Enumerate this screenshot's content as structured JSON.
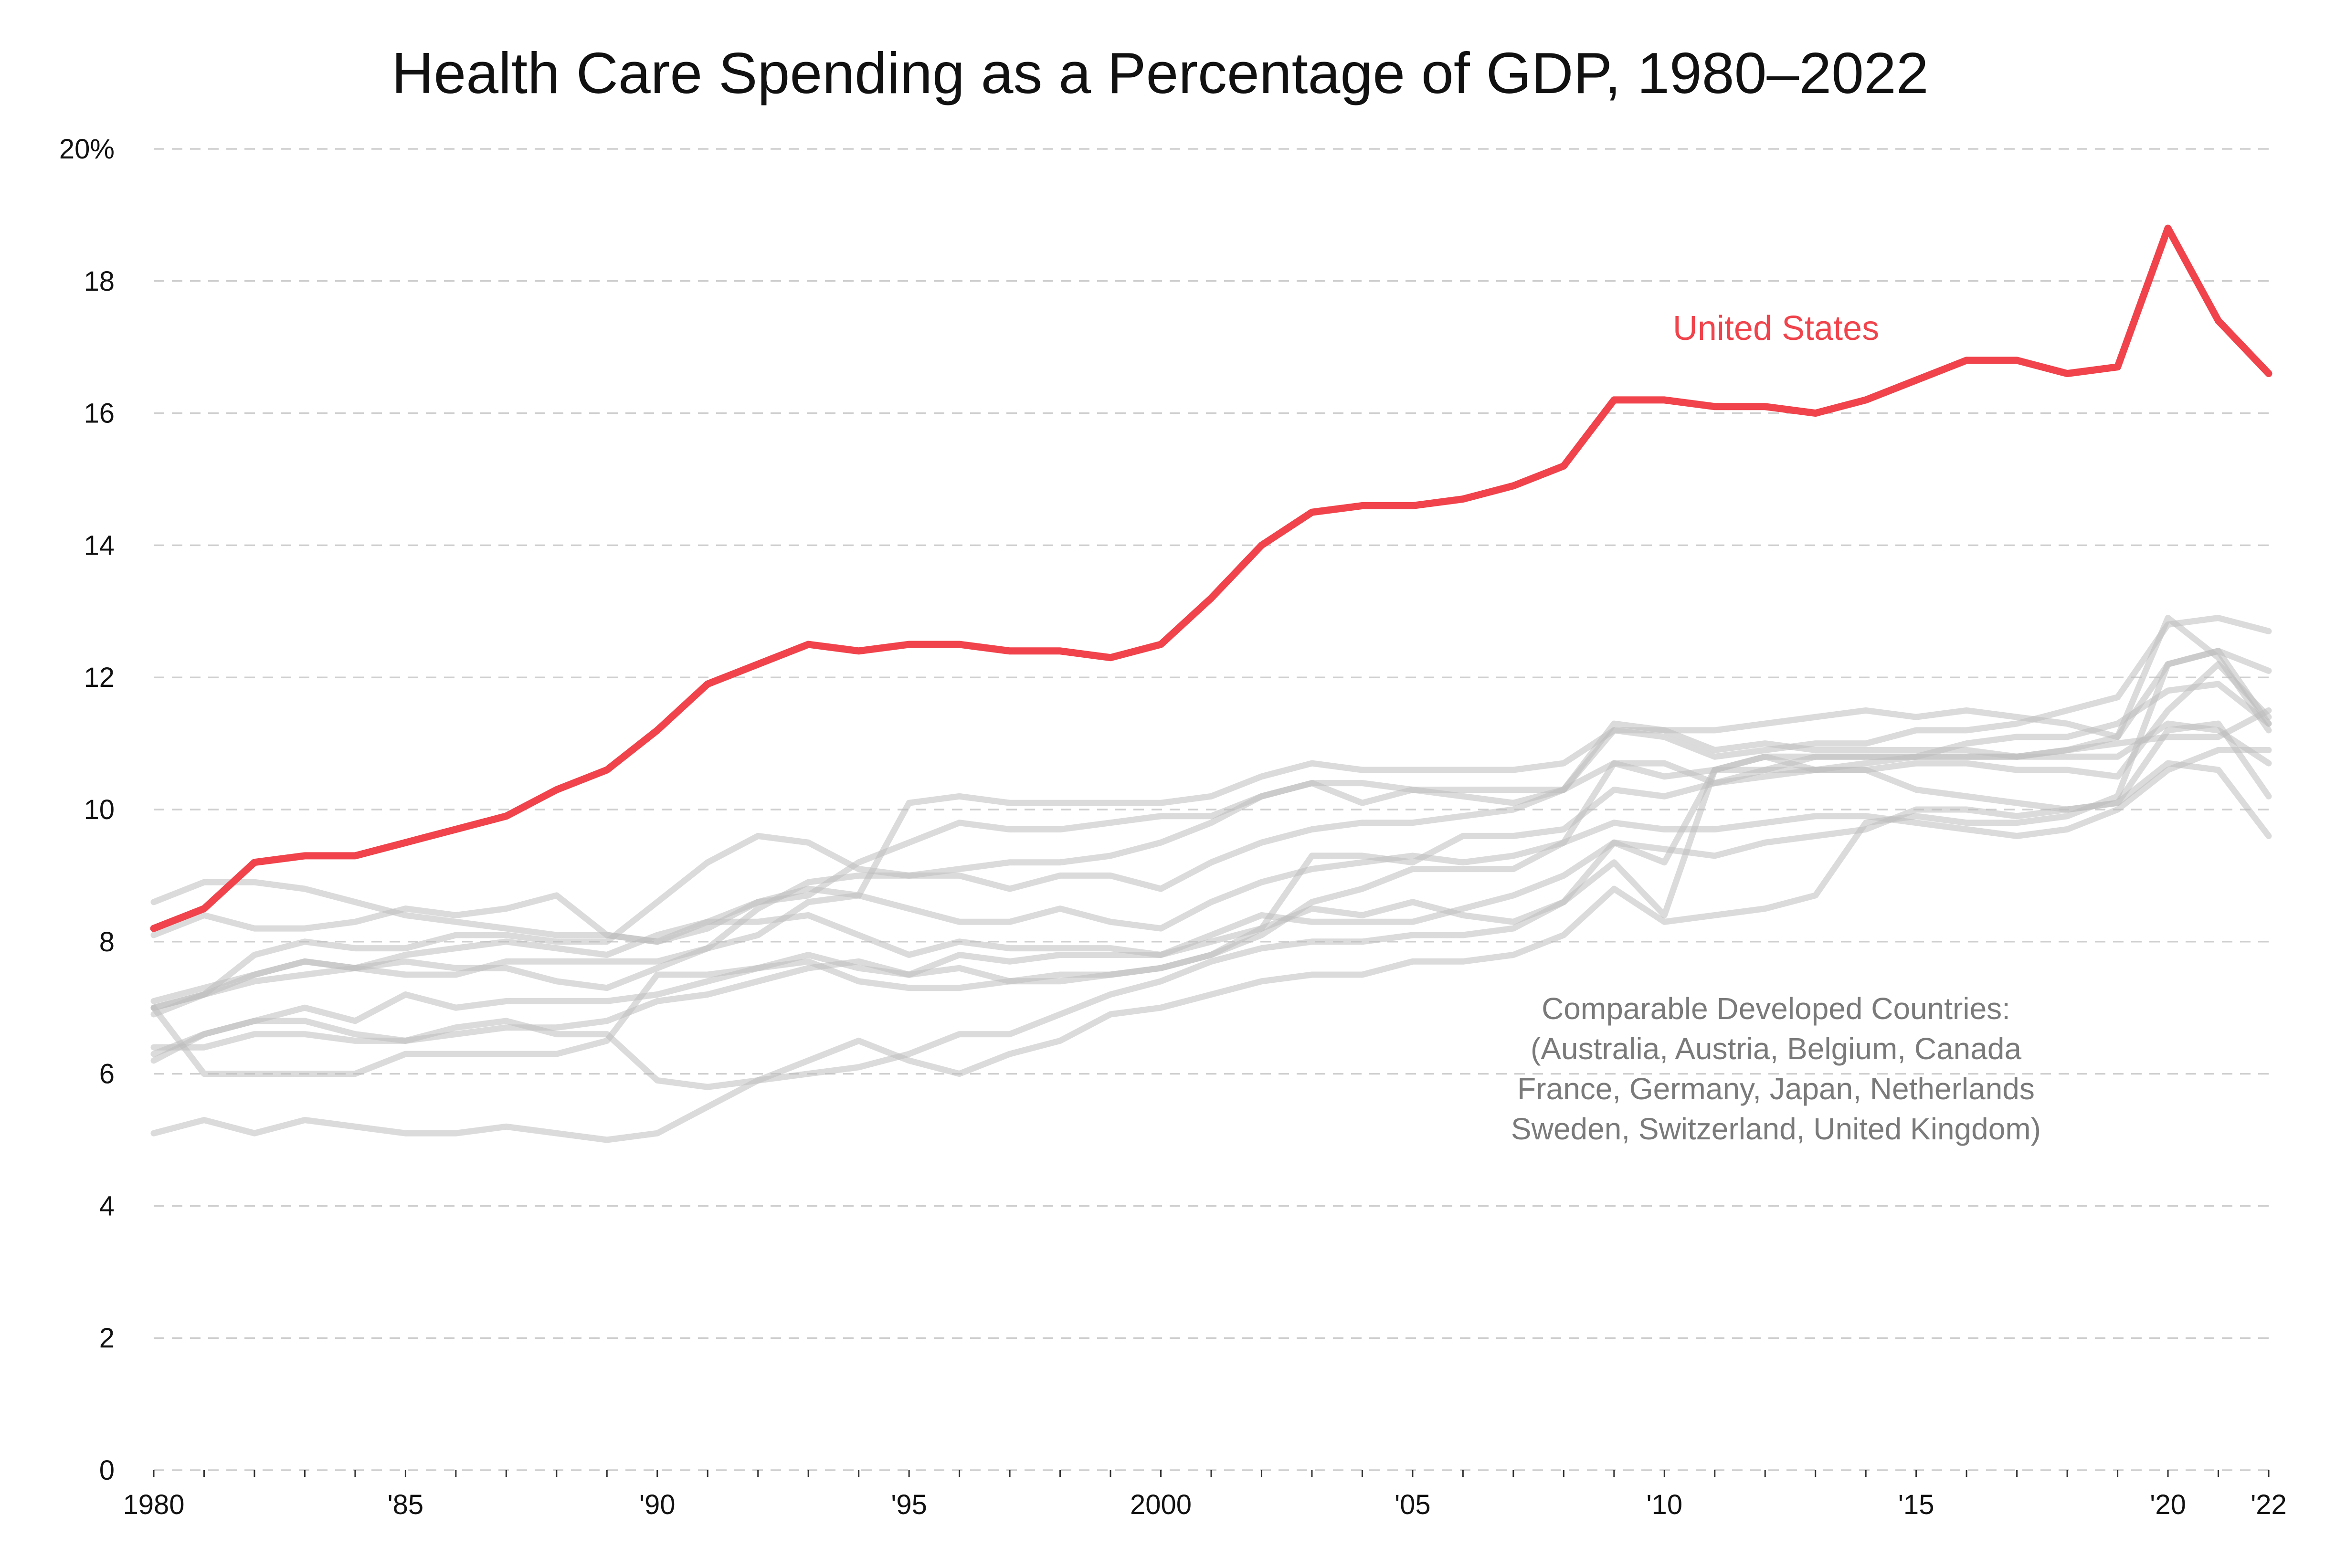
{
  "chart_data": {
    "type": "line",
    "title": "Health Care Spending as a Percentage of GDP, 1980–2022",
    "xlabel": "",
    "ylabel": "",
    "x": [
      1980,
      1981,
      1982,
      1983,
      1984,
      1985,
      1986,
      1987,
      1988,
      1989,
      1990,
      1991,
      1992,
      1993,
      1994,
      1995,
      1996,
      1997,
      1998,
      1999,
      2000,
      2001,
      2002,
      2003,
      2004,
      2005,
      2006,
      2007,
      2008,
      2009,
      2010,
      2011,
      2012,
      2013,
      2014,
      2015,
      2016,
      2017,
      2018,
      2019,
      2020,
      2021,
      2022
    ],
    "xlim": [
      1980,
      2022
    ],
    "ylim": [
      0,
      20
    ],
    "grid": true,
    "y_ticks": [
      {
        "value": 0,
        "label": "0"
      },
      {
        "value": 2,
        "label": "2"
      },
      {
        "value": 4,
        "label": "4"
      },
      {
        "value": 6,
        "label": "6"
      },
      {
        "value": 8,
        "label": "8"
      },
      {
        "value": 10,
        "label": "10"
      },
      {
        "value": 12,
        "label": "12"
      },
      {
        "value": 14,
        "label": "14"
      },
      {
        "value": 16,
        "label": "16"
      },
      {
        "value": 18,
        "label": "18"
      },
      {
        "value": 20,
        "label": "20%"
      }
    ],
    "x_ticks": [
      {
        "value": 1980,
        "label": "1980"
      },
      {
        "value": 1985,
        "label": "'85"
      },
      {
        "value": 1990,
        "label": "'90"
      },
      {
        "value": 1995,
        "label": "'95"
      },
      {
        "value": 2000,
        "label": "2000"
      },
      {
        "value": 2005,
        "label": "'05"
      },
      {
        "value": 2010,
        "label": "'10"
      },
      {
        "value": 2015,
        "label": "'15"
      },
      {
        "value": 2020,
        "label": "'20"
      },
      {
        "value": 2022,
        "label": "'22"
      }
    ],
    "highlight_series": {
      "name": "United States",
      "color": "#f0434b",
      "values": [
        8.2,
        8.5,
        9.2,
        9.3,
        9.3,
        9.5,
        9.7,
        9.9,
        10.3,
        10.6,
        11.2,
        11.9,
        12.2,
        12.5,
        12.4,
        12.5,
        12.5,
        12.4,
        12.4,
        12.3,
        12.5,
        13.2,
        14.0,
        14.5,
        14.6,
        14.6,
        14.7,
        14.9,
        15.2,
        16.2,
        16.2,
        16.1,
        16.1,
        16.0,
        16.2,
        16.5,
        16.8,
        16.8,
        16.6,
        16.7,
        18.8,
        17.4,
        16.6
      ]
    },
    "comparison_color": "#bdbdbd",
    "comparison_series": [
      {
        "values": [
          6.2,
          6.6,
          6.8,
          7.0,
          6.8,
          7.2,
          7.0,
          7.1,
          7.1,
          7.1,
          7.2,
          7.4,
          7.6,
          7.8,
          7.6,
          7.5,
          7.8,
          7.7,
          7.8,
          7.8,
          7.8,
          8.1,
          8.4,
          8.3,
          8.3,
          8.3,
          8.5,
          8.7,
          9.0,
          9.5,
          9.4,
          9.3,
          9.5,
          9.6,
          9.7,
          10.0,
          10.0,
          9.9,
          10.0,
          10.1,
          10.7,
          10.6,
          9.6
        ]
      },
      {
        "values": [
          7.0,
          6.0,
          6.0,
          6.0,
          6.0,
          6.3,
          6.3,
          6.3,
          6.3,
          6.5,
          7.5,
          7.5,
          7.6,
          7.7,
          7.4,
          7.3,
          7.3,
          7.4,
          7.4,
          7.5,
          7.6,
          7.8,
          8.2,
          9.3,
          9.3,
          9.2,
          9.6,
          9.6,
          9.7,
          10.3,
          10.2,
          10.4,
          10.5,
          10.6,
          10.6,
          10.7,
          10.7,
          10.6,
          10.6,
          10.5,
          11.5,
          12.2,
          11.4
        ]
      },
      {
        "values": [
          6.3,
          6.6,
          6.8,
          6.8,
          6.6,
          6.5,
          6.6,
          6.7,
          6.7,
          6.8,
          7.1,
          7.2,
          7.4,
          7.6,
          7.7,
          7.5,
          7.6,
          7.4,
          7.5,
          7.5,
          7.6,
          7.8,
          8.1,
          8.6,
          8.8,
          9.1,
          9.1,
          9.1,
          9.5,
          9.8,
          9.7,
          9.7,
          9.8,
          9.9,
          9.9,
          9.8,
          9.7,
          9.6,
          9.7,
          10.0,
          10.6,
          10.9,
          10.9
        ]
      },
      {
        "values": [
          6.9,
          7.2,
          7.8,
          8.0,
          7.9,
          7.9,
          8.1,
          8.1,
          8.0,
          8.0,
          8.6,
          9.2,
          9.6,
          9.5,
          9.1,
          9.0,
          9.0,
          8.8,
          9.0,
          9.0,
          8.8,
          9.2,
          9.5,
          9.7,
          9.8,
          9.8,
          9.9,
          10.0,
          10.3,
          11.3,
          11.2,
          10.9,
          11.0,
          10.9,
          10.9,
          10.9,
          10.9,
          10.8,
          10.9,
          11.1,
          12.9,
          12.3,
          11.2
        ]
      },
      {
        "values": [
          7.0,
          7.2,
          7.5,
          7.7,
          7.6,
          7.8,
          7.9,
          8.0,
          7.9,
          7.8,
          8.1,
          8.3,
          8.6,
          8.8,
          8.7,
          10.1,
          10.2,
          10.1,
          10.1,
          10.1,
          10.1,
          10.2,
          10.5,
          10.7,
          10.6,
          10.6,
          10.6,
          10.6,
          10.7,
          11.2,
          11.2,
          11.2,
          11.3,
          11.4,
          11.5,
          11.4,
          11.5,
          11.4,
          11.3,
          11.1,
          12.2,
          12.4,
          12.1
        ]
      },
      {
        "values": [
          8.1,
          8.4,
          8.2,
          8.2,
          8.3,
          8.5,
          8.4,
          8.5,
          8.7,
          8.1,
          8.0,
          8.2,
          8.6,
          8.7,
          9.2,
          9.5,
          9.8,
          9.7,
          9.7,
          9.8,
          9.9,
          9.9,
          10.2,
          10.4,
          10.1,
          10.3,
          10.2,
          10.1,
          10.3,
          11.2,
          11.1,
          10.8,
          10.9,
          11.0,
          11.0,
          11.2,
          11.2,
          11.3,
          11.5,
          11.7,
          12.8,
          12.9,
          12.7
        ]
      },
      {
        "values": [
          6.4,
          6.4,
          6.6,
          6.6,
          6.5,
          6.5,
          6.7,
          6.8,
          6.6,
          6.6,
          5.9,
          5.8,
          5.9,
          6.0,
          6.1,
          6.3,
          6.6,
          6.6,
          6.9,
          7.2,
          7.4,
          7.7,
          7.9,
          8.0,
          8.0,
          8.1,
          8.1,
          8.2,
          8.6,
          9.5,
          9.2,
          10.6,
          10.8,
          10.8,
          10.8,
          10.8,
          10.8,
          10.8,
          10.9,
          11.0,
          11.1,
          11.1,
          11.5
        ]
      },
      {
        "values": [
          7.1,
          7.3,
          7.5,
          7.7,
          7.6,
          7.5,
          7.5,
          7.7,
          7.7,
          7.7,
          7.7,
          7.9,
          8.1,
          8.6,
          8.7,
          8.5,
          8.3,
          8.3,
          8.5,
          8.3,
          8.2,
          8.6,
          8.9,
          9.1,
          9.2,
          9.3,
          9.2,
          9.3,
          9.5,
          10.7,
          10.7,
          10.4,
          10.6,
          10.6,
          10.6,
          10.3,
          10.2,
          10.1,
          10.0,
          10.1,
          11.2,
          11.3,
          10.2
        ]
      },
      {
        "values": [
          8.6,
          8.9,
          8.9,
          8.8,
          8.6,
          8.4,
          8.3,
          8.2,
          8.1,
          8.1,
          8.0,
          8.3,
          8.3,
          8.4,
          8.1,
          7.8,
          8.0,
          7.9,
          7.9,
          7.9,
          7.8,
          8.0,
          8.2,
          8.5,
          8.4,
          8.6,
          8.4,
          8.3,
          8.6,
          9.2,
          8.4,
          10.6,
          10.6,
          10.8,
          10.8,
          10.8,
          10.8,
          10.8,
          10.8,
          10.8,
          11.3,
          11.2,
          10.7
        ]
      },
      {
        "values": [
          7.0,
          7.2,
          7.4,
          7.5,
          7.6,
          7.7,
          7.6,
          7.6,
          7.4,
          7.3,
          7.6,
          7.9,
          8.5,
          8.9,
          9.0,
          9.0,
          9.1,
          9.2,
          9.2,
          9.3,
          9.5,
          9.8,
          10.2,
          10.4,
          10.4,
          10.3,
          10.3,
          10.3,
          10.3,
          10.7,
          10.5,
          10.6,
          10.8,
          10.6,
          10.7,
          10.8,
          11.0,
          11.1,
          11.1,
          11.3,
          11.8,
          11.9,
          11.3
        ]
      },
      {
        "values": [
          5.1,
          5.3,
          5.1,
          5.3,
          5.2,
          5.1,
          5.1,
          5.2,
          5.1,
          5.0,
          5.1,
          5.5,
          5.9,
          6.2,
          6.5,
          6.2,
          6.0,
          6.3,
          6.5,
          6.9,
          7.0,
          7.2,
          7.4,
          7.5,
          7.5,
          7.7,
          7.7,
          7.8,
          8.1,
          8.8,
          8.3,
          8.4,
          8.5,
          8.7,
          9.8,
          9.9,
          9.8,
          9.8,
          9.9,
          10.2,
          12.2,
          12.4,
          11.3
        ]
      }
    ],
    "annotations": {
      "us_label": "United States",
      "peer_note_lines": [
        "Comparable Developed Countries:",
        "(Australia, Austria, Belgium, Canada",
        "France, Germany, Japan, Netherlands",
        "Sweden, Switzerland, United Kingdom)"
      ]
    }
  }
}
